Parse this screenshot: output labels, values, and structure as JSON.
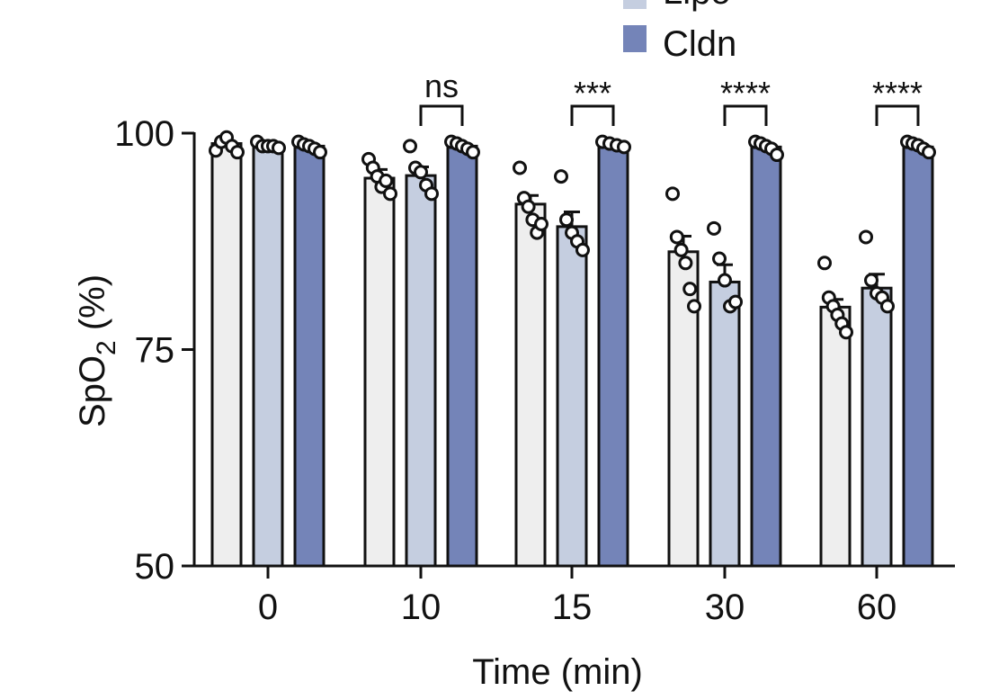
{
  "chart_data": {
    "type": "bar",
    "title": "",
    "xlabel": "Time (min)",
    "ylabel_main": "SpO",
    "ylabel_sub": "2",
    "ylabel_unit": " (%)",
    "ylim": [
      50,
      100
    ],
    "yticks": [
      "50",
      "75",
      "100"
    ],
    "categories": [
      "0",
      "10",
      "15",
      "30",
      "60"
    ],
    "series": [
      {
        "name": "",
        "color": "#eeeeee",
        "values": [
          98.8,
          94.8,
          91.8,
          86.3,
          79.9
        ],
        "sem": [
          0.3,
          1.0,
          1.0,
          1.8,
          0.9
        ],
        "points": [
          [
            98,
            99,
            99.5,
            98.5,
            97.8
          ],
          [
            97,
            96,
            95,
            93.8,
            94.5,
            93
          ],
          [
            96,
            92.5,
            91.5,
            90,
            88.5,
            89.5
          ],
          [
            93,
            88,
            86.5,
            85,
            82,
            80
          ],
          [
            85,
            81,
            80,
            79,
            78,
            77
          ]
        ]
      },
      {
        "name": "Lipo",
        "color": "#c5cee0",
        "values": [
          98.5,
          95.1,
          89.2,
          82.8,
          82.1
        ],
        "sem": [
          0.2,
          1.0,
          1.7,
          2.0,
          1.6
        ],
        "points": [
          [
            99,
            98.5,
            98.5,
            98.5,
            98.3
          ],
          [
            98.5,
            96,
            95.5,
            94,
            93
          ],
          [
            95,
            90,
            88.5,
            87.5,
            86.5
          ],
          [
            89,
            85.5,
            83,
            80,
            80.5
          ],
          [
            88,
            83,
            81.5,
            81,
            80
          ]
        ]
      },
      {
        "name": "Cldn",
        "color": "#7484b8",
        "values": [
          98.5,
          98.5,
          98.6,
          98.4,
          98.4
        ],
        "sem": [
          0.2,
          0.2,
          0.1,
          0.2,
          0.2
        ],
        "points": [
          [
            99,
            98.7,
            98.5,
            98.2,
            97.8
          ],
          [
            99,
            98.8,
            98.5,
            98.2,
            97.8
          ],
          [
            99,
            98.8,
            98.6,
            98.4
          ],
          [
            99,
            98.8,
            98.5,
            98.2,
            97.5
          ],
          [
            99,
            98.8,
            98.6,
            98.2,
            97.8
          ]
        ]
      }
    ],
    "legend_partial_top": "Lipo",
    "significance": [
      {
        "category": "10",
        "label": "ns"
      },
      {
        "category": "15",
        "label": "***"
      },
      {
        "category": "30",
        "label": "****"
      },
      {
        "category": "60",
        "label": "****"
      }
    ]
  }
}
